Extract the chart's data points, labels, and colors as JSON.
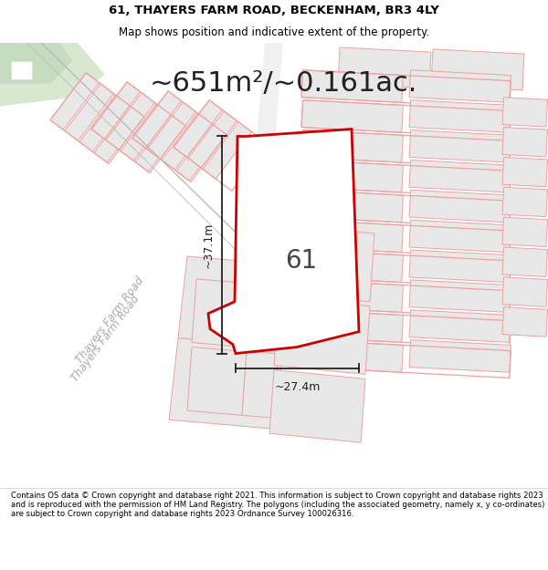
{
  "title_line1": "61, THAYERS FARM ROAD, BECKENHAM, BR3 4LY",
  "title_line2": "Map shows position and indicative extent of the property.",
  "area_text": "~651m²/~0.161ac.",
  "label_61": "61",
  "dim_height": "~37.1m",
  "dim_width": "~27.4m",
  "road_label": "Thayers Farm Road",
  "footer_text": "Contains OS data © Crown copyright and database right 2021. This information is subject to Crown copyright and database rights 2023 and is reproduced with the permission of HM Land Registry. The polygons (including the associated geometry, namely x, y co-ordinates) are subject to Crown copyright and database rights 2023 Ordnance Survey 100026316.",
  "map_bg": "#ffffff",
  "plot_fill": "#ffffff",
  "plot_stroke": "#cc0000",
  "parcel_fill": "#e8e8e8",
  "parcel_stroke": "#f0a0a0",
  "road_label_color": "#aaaaaa",
  "green_fill": "#d8e8d0",
  "green2_fill": "#c5dcc0",
  "diagonal_line_color": "#bbbbbb",
  "dim_line_color": "#222222",
  "area_text_color": "#222222",
  "label_color": "#444444",
  "header_fontsize": 9.5,
  "subtitle_fontsize": 8.5,
  "area_fontsize": 22,
  "label_fontsize": 20,
  "dim_fontsize": 9,
  "road_label_fontsize": 8.5
}
